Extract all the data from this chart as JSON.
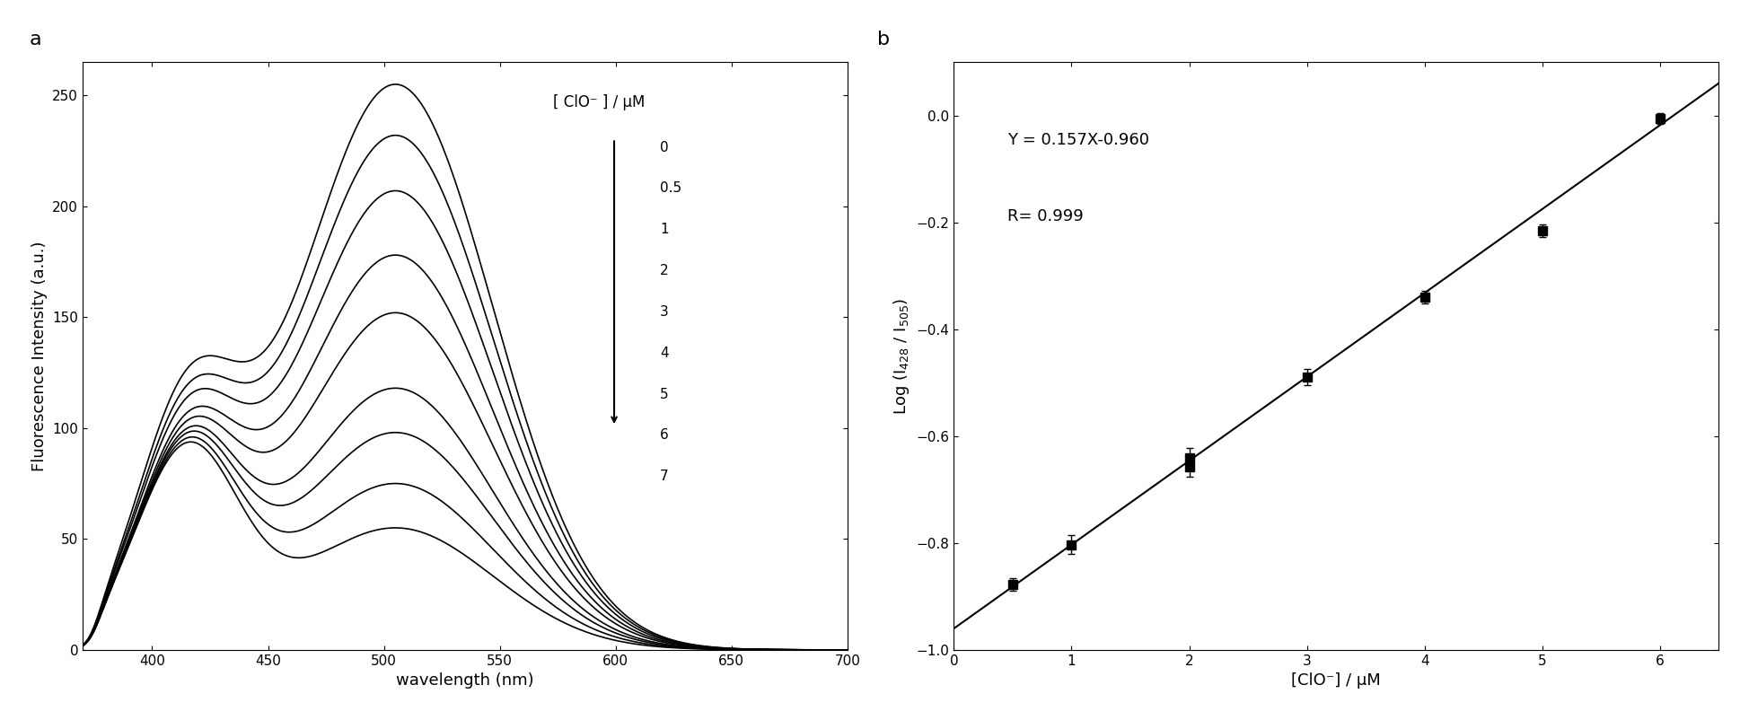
{
  "panel_a": {
    "xlabel": "wavelength (nm)",
    "ylabel": "Fluorescence Intensity (a.u.)",
    "xlim": [
      370,
      700
    ],
    "ylim": [
      0,
      265
    ],
    "yticks": [
      0,
      50,
      100,
      150,
      200,
      250
    ],
    "xticks": [
      400,
      450,
      500,
      550,
      600,
      650,
      700
    ],
    "legend_title": "[ ClO⁻ ] / μM",
    "legend_labels": [
      "0",
      "0.5",
      "1",
      "2",
      "3",
      "4",
      "5",
      "6",
      "7"
    ],
    "curves": [
      {
        "peak": 255,
        "peak_x": 505,
        "rise_peak": 101,
        "rise_x": 415,
        "sigma_main": 42,
        "sigma_rise": 22
      },
      {
        "peak": 232,
        "peak_x": 505,
        "rise_peak": 96,
        "rise_x": 415,
        "sigma_main": 42,
        "sigma_rise": 22
      },
      {
        "peak": 207,
        "peak_x": 505,
        "rise_peak": 93,
        "rise_x": 415,
        "sigma_main": 42,
        "sigma_rise": 22
      },
      {
        "peak": 178,
        "peak_x": 505,
        "rise_peak": 89,
        "rise_x": 415,
        "sigma_main": 42,
        "sigma_rise": 22
      },
      {
        "peak": 152,
        "peak_x": 505,
        "rise_peak": 88,
        "rise_x": 415,
        "sigma_main": 42,
        "sigma_rise": 22
      },
      {
        "peak": 118,
        "peak_x": 505,
        "rise_peak": 88,
        "rise_x": 415,
        "sigma_main": 42,
        "sigma_rise": 22
      },
      {
        "peak": 98,
        "peak_x": 505,
        "rise_peak": 88,
        "rise_x": 415,
        "sigma_main": 42,
        "sigma_rise": 22
      },
      {
        "peak": 75,
        "peak_x": 505,
        "rise_peak": 88,
        "rise_x": 415,
        "sigma_main": 42,
        "sigma_rise": 22
      },
      {
        "peak": 55,
        "peak_x": 505,
        "rise_peak": 88,
        "rise_x": 415,
        "sigma_main": 42,
        "sigma_rise": 22
      }
    ]
  },
  "panel_b": {
    "xlabel": "[ClO⁻] / μM",
    "ylabel": "Log (I$_{428}$ / I$_{505}$)",
    "xlim": [
      0,
      6.5
    ],
    "ylim": [
      -1.0,
      0.1
    ],
    "yticks": [
      -1.0,
      -0.8,
      -0.6,
      -0.4,
      -0.2,
      0.0
    ],
    "xticks": [
      0,
      1,
      2,
      3,
      4,
      5,
      6
    ],
    "equation": "Y = 0.157X-0.960",
    "r_value": "R= 0.999",
    "slope": 0.157,
    "intercept": -0.96,
    "x_data": [
      0.5,
      1.0,
      2.0,
      2.0,
      3.0,
      4.0,
      5.0,
      6.0
    ],
    "y_data": [
      -0.878,
      -0.803,
      -0.64,
      -0.658,
      -0.49,
      -0.34,
      -0.215,
      -0.005
    ],
    "y_err": [
      0.012,
      0.018,
      0.018,
      0.018,
      0.015,
      0.012,
      0.012,
      0.01
    ]
  }
}
